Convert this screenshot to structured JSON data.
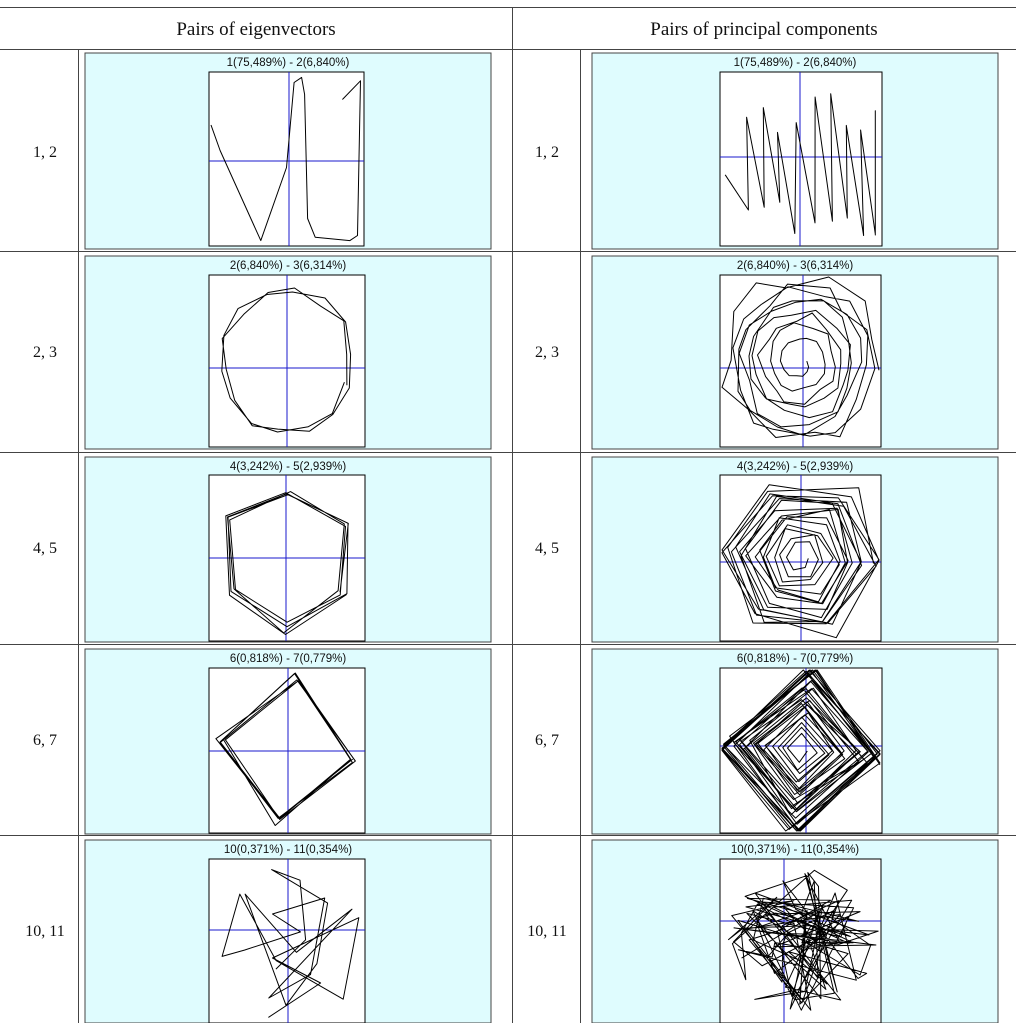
{
  "table": {
    "headers": [
      "Pairs of eigenvectors",
      "Pairs of principal components"
    ],
    "rows": [
      {
        "label": "1, 2",
        "eig_title": "1(75,489%) - 2(6,840%)",
        "pc_title": "1(75,489%) - 2(6,840%)"
      },
      {
        "label": "2, 3",
        "eig_title": "2(6,840%) - 3(6,314%)",
        "pc_title": "2(6,840%) - 3(6,314%)"
      },
      {
        "label": "4, 5",
        "eig_title": "4(3,242%) - 5(2,939%)",
        "pc_title": "4(3,242%) - 5(2,939%)"
      },
      {
        "label": "6, 7",
        "eig_title": "6(0,818%) - 7(0,779%)",
        "pc_title": "6(0,818%) - 7(0,779%)"
      },
      {
        "label": "10, 11",
        "eig_title": "10(0,371%) - 11(0,354%)",
        "pc_title": "10(0,371%) - 11(0,354%)"
      }
    ]
  },
  "colors": {
    "panel_bg": "#dffcfe",
    "axis": "#1a1acc",
    "trace": "#000000",
    "grid": "#444444"
  }
}
